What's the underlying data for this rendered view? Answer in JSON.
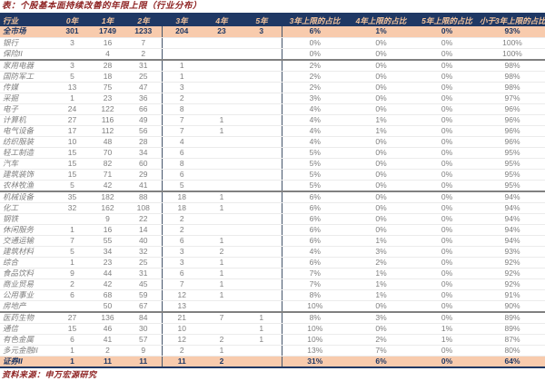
{
  "title": "表：个股基本面持续改善的年限上限（行业分布）",
  "source": "资料来源：申万宏源研究",
  "colors": {
    "header_bg": "#1f3864",
    "header_text": "#f2c39c",
    "highlight_row_bg": "#f8cbad",
    "highlight_row_text": "#1f3864",
    "body_text": "#7f7f7f",
    "title_text": "#8e2323"
  },
  "chart_data": {
    "type": "table",
    "title": "表：个股基本面持续改善的年限上限（行业分布）",
    "source": "资料来源：申万宏源研究",
    "columns": [
      "行业",
      "0年",
      "1年",
      "2年",
      "3年",
      "4年",
      "5年",
      "3年上限的占比",
      "4年上限的占比",
      "5年上限的占比",
      "小于3年上限的占比"
    ],
    "rows": [
      {
        "name": "全市场",
        "cells": [
          "301",
          "1749",
          "1233",
          "204",
          "23",
          "3",
          "6%",
          "1%",
          "0%",
          "93%"
        ],
        "highlight": true
      },
      {
        "name": "银行",
        "cells": [
          "3",
          "16",
          "7",
          "",
          "",
          "",
          "0%",
          "0%",
          "0%",
          "100%"
        ]
      },
      {
        "name": "保险II",
        "cells": [
          "",
          "4",
          "2",
          "",
          "",
          "",
          "0%",
          "0%",
          "0%",
          "100%"
        ]
      },
      {
        "name": "家用电器",
        "cells": [
          "3",
          "28",
          "31",
          "1",
          "",
          "",
          "2%",
          "0%",
          "0%",
          "98%"
        ],
        "divider_above": true
      },
      {
        "name": "国防军工",
        "cells": [
          "5",
          "18",
          "25",
          "1",
          "",
          "",
          "2%",
          "0%",
          "0%",
          "98%"
        ]
      },
      {
        "name": "传媒",
        "cells": [
          "13",
          "75",
          "47",
          "3",
          "",
          "",
          "2%",
          "0%",
          "0%",
          "98%"
        ]
      },
      {
        "name": "采掘",
        "cells": [
          "1",
          "23",
          "36",
          "2",
          "",
          "",
          "3%",
          "0%",
          "0%",
          "97%"
        ]
      },
      {
        "name": "电子",
        "cells": [
          "24",
          "122",
          "66",
          "8",
          "",
          "",
          "4%",
          "0%",
          "0%",
          "96%"
        ]
      },
      {
        "name": "计算机",
        "cells": [
          "27",
          "116",
          "49",
          "7",
          "1",
          "",
          "4%",
          "1%",
          "0%",
          "96%"
        ]
      },
      {
        "name": "电气设备",
        "cells": [
          "17",
          "112",
          "56",
          "7",
          "1",
          "",
          "4%",
          "1%",
          "0%",
          "96%"
        ]
      },
      {
        "name": "纺织服装",
        "cells": [
          "10",
          "48",
          "28",
          "4",
          "",
          "",
          "4%",
          "0%",
          "0%",
          "96%"
        ]
      },
      {
        "name": "轻工制造",
        "cells": [
          "15",
          "70",
          "34",
          "6",
          "",
          "",
          "5%",
          "0%",
          "0%",
          "95%"
        ]
      },
      {
        "name": "汽车",
        "cells": [
          "15",
          "82",
          "60",
          "8",
          "",
          "",
          "5%",
          "0%",
          "0%",
          "95%"
        ]
      },
      {
        "name": "建筑装饰",
        "cells": [
          "15",
          "71",
          "29",
          "6",
          "",
          "",
          "5%",
          "0%",
          "0%",
          "95%"
        ]
      },
      {
        "name": "农林牧渔",
        "cells": [
          "5",
          "42",
          "41",
          "5",
          "",
          "",
          "5%",
          "0%",
          "0%",
          "95%"
        ]
      },
      {
        "name": "机械设备",
        "cells": [
          "35",
          "182",
          "88",
          "18",
          "1",
          "",
          "6%",
          "0%",
          "0%",
          "94%"
        ],
        "divider_above": true
      },
      {
        "name": "化工",
        "cells": [
          "32",
          "162",
          "108",
          "18",
          "1",
          "",
          "6%",
          "0%",
          "0%",
          "94%"
        ]
      },
      {
        "name": "钢铁",
        "cells": [
          "",
          "9",
          "22",
          "2",
          "",
          "",
          "6%",
          "0%",
          "0%",
          "94%"
        ]
      },
      {
        "name": "休闲服务",
        "cells": [
          "1",
          "16",
          "14",
          "2",
          "",
          "",
          "6%",
          "0%",
          "0%",
          "94%"
        ]
      },
      {
        "name": "交通运输",
        "cells": [
          "7",
          "55",
          "40",
          "6",
          "1",
          "",
          "6%",
          "1%",
          "0%",
          "94%"
        ]
      },
      {
        "name": "建筑材料",
        "cells": [
          "5",
          "34",
          "32",
          "3",
          "2",
          "",
          "4%",
          "3%",
          "0%",
          "93%"
        ]
      },
      {
        "name": "综合",
        "cells": [
          "1",
          "23",
          "25",
          "3",
          "1",
          "",
          "6%",
          "2%",
          "0%",
          "92%"
        ]
      },
      {
        "name": "食品饮料",
        "cells": [
          "9",
          "44",
          "31",
          "6",
          "1",
          "",
          "7%",
          "1%",
          "0%",
          "92%"
        ]
      },
      {
        "name": "商业贸易",
        "cells": [
          "2",
          "42",
          "45",
          "7",
          "1",
          "",
          "7%",
          "1%",
          "0%",
          "92%"
        ]
      },
      {
        "name": "公用事业",
        "cells": [
          "6",
          "68",
          "59",
          "12",
          "1",
          "",
          "8%",
          "1%",
          "0%",
          "91%"
        ]
      },
      {
        "name": "房地产",
        "cells": [
          "",
          "50",
          "67",
          "13",
          "",
          "",
          "10%",
          "0%",
          "0%",
          "90%"
        ]
      },
      {
        "name": "医药生物",
        "cells": [
          "27",
          "136",
          "84",
          "21",
          "7",
          "1",
          "8%",
          "3%",
          "0%",
          "89%"
        ],
        "divider_above": true
      },
      {
        "name": "通信",
        "cells": [
          "15",
          "46",
          "30",
          "10",
          "",
          "1",
          "10%",
          "0%",
          "1%",
          "89%"
        ]
      },
      {
        "name": "有色金属",
        "cells": [
          "6",
          "41",
          "57",
          "12",
          "2",
          "1",
          "10%",
          "2%",
          "1%",
          "87%"
        ]
      },
      {
        "name": "多元金融II",
        "cells": [
          "1",
          "2",
          "9",
          "2",
          "1",
          "",
          "13%",
          "7%",
          "0%",
          "80%"
        ]
      },
      {
        "name": "证券II",
        "cells": [
          "1",
          "11",
          "11",
          "11",
          "2",
          "",
          "31%",
          "6%",
          "0%",
          "64%"
        ],
        "highlight": true
      }
    ]
  }
}
